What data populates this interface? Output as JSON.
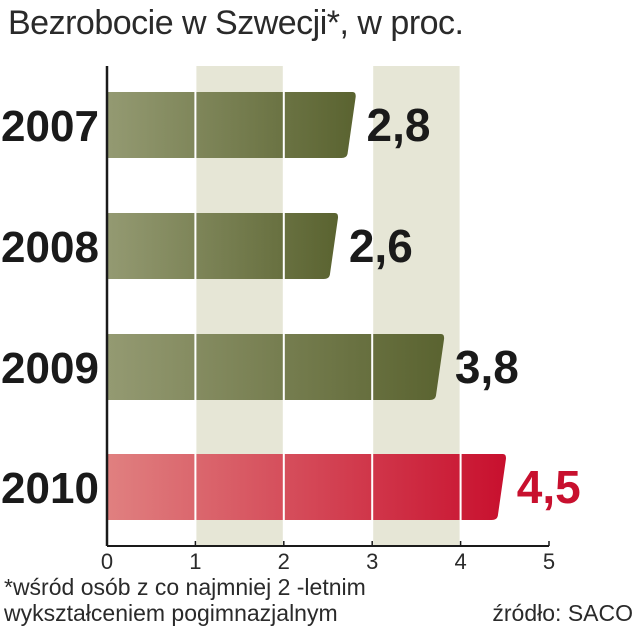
{
  "chart_data": {
    "type": "bar",
    "orientation": "horizontal",
    "title": "Bezrobocie w Szwecji*, w proc.",
    "categories": [
      "2007",
      "2008",
      "2009",
      "2010"
    ],
    "values": [
      2.8,
      2.6,
      3.8,
      4.5
    ],
    "value_labels": [
      "2,8",
      "2,6",
      "3,8",
      "4,5"
    ],
    "xlim": [
      0,
      5
    ],
    "x_ticks": [
      "0",
      "1",
      "2",
      "3",
      "4",
      "5"
    ],
    "grid": "vertical",
    "highlight_category": "2010",
    "colors": {
      "bar_default": "#5a6330",
      "bar_default_light": "#949a72",
      "bar_highlight": "#c8102e",
      "bar_highlight_light": "#e08080",
      "band_shade": "#e6e6d6",
      "label_default": "#1a1a1a",
      "label_highlight": "#c8102e"
    }
  },
  "footnote": {
    "line1": "*wśród osób z co najmniej 2 -letnim",
    "line2": "wykształceniem pogimnazjalnym"
  },
  "source": "źródło: SACO"
}
